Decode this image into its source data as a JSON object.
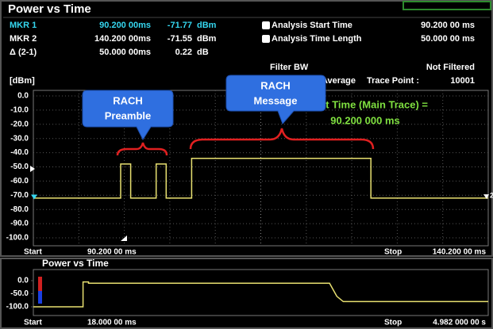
{
  "title": "Power vs Time",
  "markers": {
    "rows": [
      [
        "MKR 1",
        "90.200 00ms",
        "-71.77",
        "dBm"
      ],
      [
        "MKR 2",
        "140.200 00ms",
        "-71.55",
        "dBm"
      ],
      [
        "Δ (2-1)",
        "50.000 00ms",
        "0.22",
        "dB"
      ]
    ]
  },
  "settings": [
    {
      "label": "Analysis Start Time",
      "value": "90.200 00 ms"
    },
    {
      "label": "Analysis Time Length",
      "value": "50.000 00 ms"
    },
    {
      "label": "Filter BW",
      "value": "Not Filtered"
    }
  ],
  "trace_info": {
    "unit": "[dBm]",
    "detector": "Average",
    "trace_point_label": "Trace Point :",
    "trace_point": "10001"
  },
  "annotation": {
    "line1": "art Time (Main Trace) =",
    "line2": "90.200 000 ms"
  },
  "callouts": [
    [
      "RACH",
      "Preamble"
    ],
    [
      "RACH",
      "Message"
    ]
  ],
  "chart_data": [
    {
      "type": "line",
      "x": [
        90.2,
        99.8,
        99.8,
        100.9,
        100.9,
        103.7,
        103.7,
        104.8,
        104.8,
        107.6,
        107.6,
        127.3,
        127.3,
        140.2
      ],
      "values": [
        -72,
        -72,
        -48,
        -48,
        -72,
        -72,
        -48,
        -48,
        -72,
        -72,
        -44,
        -44,
        -72,
        -72
      ],
      "color": "#e8e070",
      "xlim": [
        90.2,
        140.2
      ],
      "ylim": [
        -100,
        0
      ],
      "yticks": [
        {
          "value": 0,
          "label": "0.0"
        },
        {
          "value": -10,
          "label": "-10.0"
        },
        {
          "value": -20,
          "label": "-20.0"
        },
        {
          "value": -30,
          "label": "-30.0"
        },
        {
          "value": -40,
          "label": "-40.0"
        },
        {
          "value": -50,
          "label": "-50.0"
        },
        {
          "value": -60,
          "label": "-60.0"
        },
        {
          "value": -70,
          "label": "-70.0"
        },
        {
          "value": -80,
          "label": "-80.0"
        },
        {
          "value": -90,
          "label": "-90.0"
        },
        {
          "value": -100,
          "label": "-100.0"
        }
      ],
      "grid": true,
      "marker_points": [
        {
          "x": 90.2,
          "y": -71.77
        },
        {
          "x": 140.2,
          "y": -71.55,
          "label": "2"
        }
      ],
      "x_labels": [
        "Start",
        "90.200 00 ms",
        "Stop",
        "140.200 00 ms"
      ]
    },
    {
      "type": "line",
      "title": "Power vs Time",
      "x": [
        18,
        560,
        560,
        620,
        620,
        3250,
        3330,
        3400,
        4982
      ],
      "values": [
        -100,
        -100,
        -5,
        -5,
        -10,
        -10,
        -60,
        -80,
        -80
      ],
      "color": "#e8e070",
      "xlim": [
        18,
        4982
      ],
      "ylim": [
        -100,
        0
      ],
      "yticks": [
        {
          "value": 0,
          "label": "0.0"
        },
        {
          "value": -50,
          "label": "-50.0"
        },
        {
          "value": -100,
          "label": "-100.0"
        }
      ],
      "grid": false,
      "x_labels": [
        "Start",
        "18.000 00 ms",
        "Stop",
        "4.982 000 00 s"
      ]
    }
  ]
}
